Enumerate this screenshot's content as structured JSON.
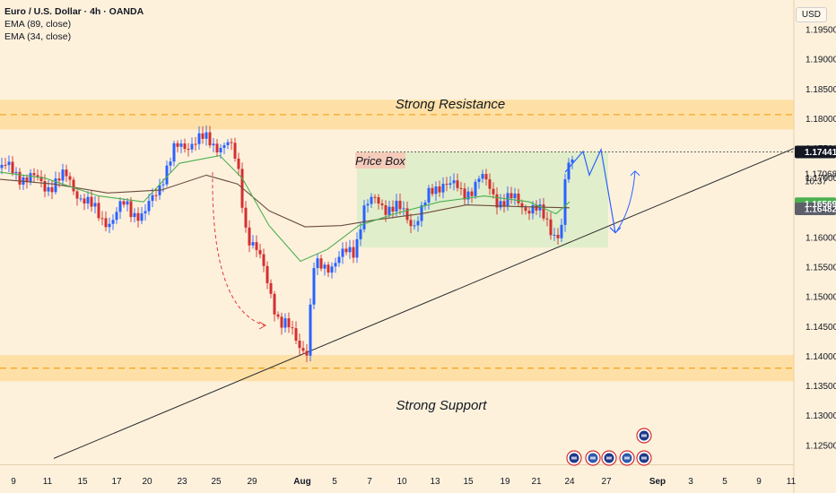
{
  "legend": {
    "title": "Euro / U.S. Dollar · 4h · OANDA",
    "ema_slow": "EMA (89, close)",
    "ema_fast": "EMA (34, close)"
  },
  "currency": "USD",
  "colors": {
    "background": "#fdf1dc",
    "up_candle": "#2962ff",
    "down_candle": "#d32f2f",
    "zone_fill": "#ffd17a",
    "zone_line": "#f5a623",
    "ema_slow": "#6b4b3e",
    "ema_fast": "#4caf50",
    "price_box": "#d7ecc5",
    "projection": "#2962ff"
  },
  "chart_data": {
    "type": "candlestick",
    "symbol": "EURUSD",
    "timeframe": "4h",
    "ylim": [
      1.1218,
      1.2
    ]
  },
  "y_axis": {
    "ticks": [
      "1.19500",
      "1.19000",
      "1.18500",
      "1.18000",
      "1.17500",
      "1.17000",
      "1.16500",
      "1.16000",
      "1.15500",
      "1.15000",
      "1.14500",
      "1.14000",
      "1.13500",
      "1.13000",
      "1.12500"
    ],
    "labels": [
      {
        "text": "1.17441",
        "value": 1.17441,
        "bg": "#131722",
        "fg": "#ffffff"
      },
      {
        "text": "1.17068",
        "value": 1.17068,
        "bg": "",
        "fg": "#131722"
      },
      {
        "text": "10:37",
        "value": 1.1695,
        "bg": "",
        "fg": "#131722"
      },
      {
        "text": "1.16569",
        "value": 1.16569,
        "bg": "#4caf50",
        "fg": "#ffffff"
      },
      {
        "text": "1.16482",
        "value": 1.16482,
        "bg": "#5d606b",
        "fg": "#ffffff"
      }
    ]
  },
  "x_axis": {
    "ticks": [
      {
        "label": "9",
        "bold": false
      },
      {
        "label": "11",
        "bold": false
      },
      {
        "label": "15",
        "bold": false
      },
      {
        "label": "17",
        "bold": false
      },
      {
        "label": "20",
        "bold": false
      },
      {
        "label": "23",
        "bold": false
      },
      {
        "label": "25",
        "bold": false
      },
      {
        "label": "29",
        "bold": false
      },
      {
        "label": "Aug",
        "bold": true
      },
      {
        "label": "5",
        "bold": false
      },
      {
        "label": "7",
        "bold": false
      },
      {
        "label": "10",
        "bold": false
      },
      {
        "label": "13",
        "bold": false
      },
      {
        "label": "15",
        "bold": false
      },
      {
        "label": "19",
        "bold": false
      },
      {
        "label": "21",
        "bold": false
      },
      {
        "label": "24",
        "bold": false
      },
      {
        "label": "27",
        "bold": false
      },
      {
        "label": "Sep",
        "bold": true
      },
      {
        "label": "3",
        "bold": false
      },
      {
        "label": "5",
        "bold": false
      },
      {
        "label": "9",
        "bold": false
      },
      {
        "label": "11",
        "bold": false
      }
    ]
  },
  "annotations": {
    "resistance_label": "Strong Resistance",
    "support_label": "Strong Support",
    "price_box_label": "Price Box",
    "resistance_zone": [
      1.1782,
      1.1832
    ],
    "support_zone": [
      1.1358,
      1.1402
    ],
    "price_box_range": [
      1.1583,
      1.1744
    ]
  }
}
